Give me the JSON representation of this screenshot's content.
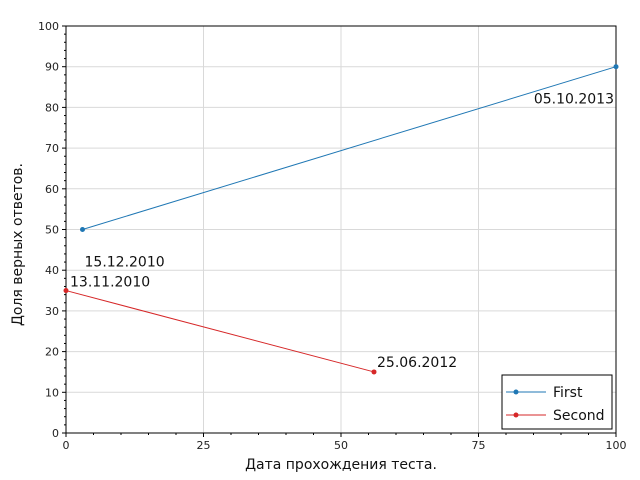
{
  "chart_data": {
    "type": "line",
    "title": "",
    "xlabel": "Дата прохождения теста.",
    "ylabel": "Доля верных ответов.",
    "xlim": [
      0,
      100
    ],
    "ylim": [
      0,
      100
    ],
    "x_ticks": [
      0,
      25,
      50,
      75,
      100
    ],
    "y_ticks": [
      0,
      10,
      20,
      30,
      40,
      50,
      60,
      70,
      80,
      90,
      100
    ],
    "grid": true,
    "legend_position": "bottom-right",
    "series": [
      {
        "name": "First",
        "color": "#1f77b4",
        "points": [
          {
            "x": 3,
            "y": 50,
            "label": "15.12.2010"
          },
          {
            "x": 100,
            "y": 90,
            "label": "05.10.2013"
          }
        ]
      },
      {
        "name": "Second",
        "color": "#d62728",
        "points": [
          {
            "x": 0,
            "y": 35,
            "label": "13.11.2010"
          },
          {
            "x": 56,
            "y": 15,
            "label": "25.06.2012"
          }
        ]
      }
    ]
  }
}
